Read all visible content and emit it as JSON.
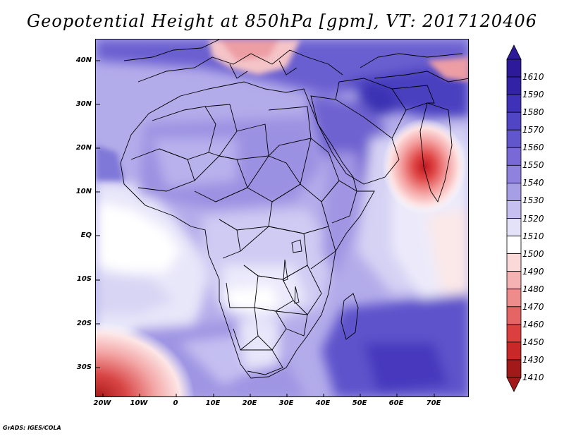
{
  "title": "Geopotential Height at 850hPa [gpm], VT: 2017120406",
  "credit": "GrADS: IGES/COLA",
  "lat_labels": [
    "40N",
    "30N",
    "20N",
    "10N",
    "EQ",
    "10S",
    "20S",
    "30S"
  ],
  "lon_labels": [
    "20W",
    "10W",
    "0",
    "10E",
    "20E",
    "30E",
    "40E",
    "50E",
    "60E",
    "70E"
  ],
  "colorbar": {
    "levels": [
      "1610",
      "1590",
      "1580",
      "1570",
      "1560",
      "1550",
      "1540",
      "1530",
      "1520",
      "1510",
      "1500",
      "1490",
      "1480",
      "1470",
      "1460",
      "1450",
      "1430",
      "1410"
    ],
    "colors": [
      "#2c1a9a",
      "#3222a6",
      "#3f32b8",
      "#5045c4",
      "#6256cd",
      "#7869d6",
      "#8e82de",
      "#a79fe6",
      "#c5c0ef",
      "#e4e2f8",
      "#ffffff",
      "#fbd9d9",
      "#f5b2b2",
      "#ee8c8c",
      "#e56464",
      "#dc3f3f",
      "#c82828",
      "#a31818"
    ]
  }
}
